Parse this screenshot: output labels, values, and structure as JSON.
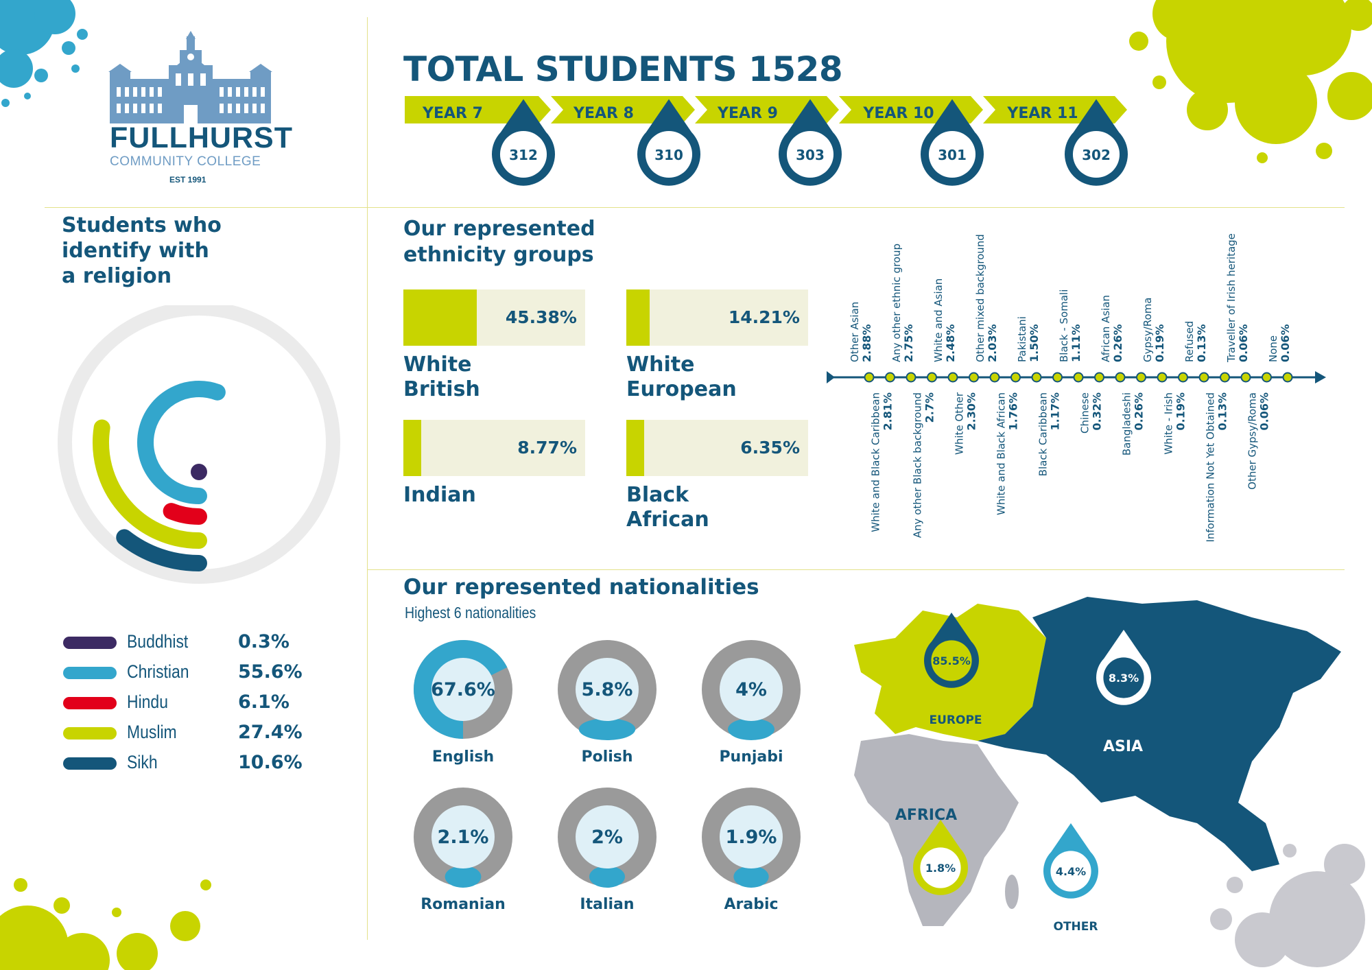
{
  "colors": {
    "navy": "#14567a",
    "lime": "#c8d400",
    "blue": "#33a6cc",
    "red": "#e2001a",
    "purple": "#3c2a63",
    "grey": "#9a9a9a",
    "lightgrey": "#ebebeb",
    "cream": "#f1f1dd",
    "logo": "#6f9cc4"
  },
  "logo": {
    "name": "FULLHURST",
    "subtitle": "COMMUNITY COLLEGE",
    "est": "EST 1991"
  },
  "total": {
    "title": "TOTAL STUDENTS 1528",
    "years": [
      {
        "label": "YEAR 7",
        "value": "312"
      },
      {
        "label": "YEAR 8",
        "value": "310"
      },
      {
        "label": "YEAR 9",
        "value": "303"
      },
      {
        "label": "YEAR 10",
        "value": "301"
      },
      {
        "label": "YEAR 11",
        "value": "302"
      }
    ]
  },
  "religion": {
    "title": [
      "Students who",
      "identify with",
      "a religion"
    ],
    "items": [
      {
        "label": "Buddhist",
        "value": "0.3%",
        "color": "#3c2a63"
      },
      {
        "label": "Christian",
        "value": "55.6%",
        "color": "#33a6cc"
      },
      {
        "label": "Hindu",
        "value": "6.1%",
        "color": "#e2001a"
      },
      {
        "label": "Muslim",
        "value": "27.4%",
        "color": "#c8d400"
      },
      {
        "label": "Sikh",
        "value": "10.6%",
        "color": "#14567a"
      }
    ]
  },
  "ethnicity": {
    "title": [
      "Our represented",
      "ethnicity groups"
    ],
    "top": [
      {
        "value": "45.38%",
        "label": [
          "White",
          "British"
        ]
      },
      {
        "value": "14.21%",
        "label": [
          "White",
          "European"
        ]
      },
      {
        "value": "8.77%",
        "label": [
          "Indian"
        ]
      },
      {
        "value": "6.35%",
        "label": [
          "Black",
          "African"
        ]
      }
    ],
    "timeline_above": [
      {
        "name": "Other Asian",
        "value": "2.88%"
      },
      {
        "name": "Any other ethnic group",
        "value": "2.75%"
      },
      {
        "name": "White and Asian",
        "value": "2.48%"
      },
      {
        "name": "Other mixed background",
        "value": "2.03%"
      },
      {
        "name": "Pakistani",
        "value": "1.50%"
      },
      {
        "name": "Black - Somali",
        "value": "1.11%"
      },
      {
        "name": "African Asian",
        "value": "0.26%"
      },
      {
        "name": "Gypsy/Roma",
        "value": "0.19%"
      },
      {
        "name": "Refused",
        "value": "0.13%"
      },
      {
        "name": "Traveller of Irish heritage",
        "value": "0.06%"
      },
      {
        "name": "None",
        "value": "0.06%"
      }
    ],
    "timeline_below": [
      {
        "name": "White and Black Caribbean",
        "value": "2.81%"
      },
      {
        "name": "Any other Black background",
        "value": "2.7%"
      },
      {
        "name": "White Other",
        "value": "2.30%"
      },
      {
        "name": "White and Black African",
        "value": "1.76%"
      },
      {
        "name": "Black Caribbean",
        "value": "1.17%"
      },
      {
        "name": "Chinese",
        "value": "0.32%"
      },
      {
        "name": "Bangladeshi",
        "value": "0.26%"
      },
      {
        "name": "White - Irish",
        "value": "0.19%"
      },
      {
        "name": "Information Not Yet Obtained",
        "value": "0.13%"
      },
      {
        "name": "Other Gypsy/Roma",
        "value": "0.06%"
      }
    ]
  },
  "nationalities": {
    "title": "Our represented nationalities",
    "subtitle": "Highest 6 nationalities",
    "items": [
      {
        "value": "67.6%",
        "label": "English"
      },
      {
        "value": "5.8%",
        "label": "Polish"
      },
      {
        "value": "4%",
        "label": "Punjabi"
      },
      {
        "value": "2.1%",
        "label": "Romanian"
      },
      {
        "value": "2%",
        "label": "Italian"
      },
      {
        "value": "1.9%",
        "label": "Arabic"
      }
    ]
  },
  "map": {
    "europe": {
      "label": "EUROPE",
      "value": "85.5%"
    },
    "asia": {
      "label": "ASIA",
      "value": "8.3%"
    },
    "africa": {
      "label": "AFRICA",
      "value": "1.8%"
    },
    "other": {
      "label": "OTHER",
      "value": "4.4%"
    }
  },
  "chart_data": [
    {
      "type": "bar",
      "title": "TOTAL STUDENTS 1528",
      "categories": [
        "YEAR 7",
        "YEAR 8",
        "YEAR 9",
        "YEAR 10",
        "YEAR 11"
      ],
      "values": [
        312,
        310,
        303,
        301,
        302
      ]
    },
    {
      "type": "bar",
      "title": "Students who identify with a religion",
      "categories": [
        "Buddhist",
        "Christian",
        "Hindu",
        "Muslim",
        "Sikh"
      ],
      "values": [
        0.3,
        55.6,
        6.1,
        27.4,
        10.6
      ]
    },
    {
      "type": "bar",
      "title": "Our represented ethnicity groups",
      "categories": [
        "White British",
        "White European",
        "Indian",
        "Black African"
      ],
      "values": [
        45.38,
        14.21,
        8.77,
        6.35
      ]
    },
    {
      "type": "scatter",
      "categories": [
        "Other Asian",
        "White and Black Caribbean",
        "Any other ethnic group",
        "Any other Black background",
        "White and Asian",
        "White Other",
        "Other mixed background",
        "White and Black African",
        "Pakistani",
        "Black Caribbean",
        "Black - Somali",
        "Chinese",
        "African Asian",
        "Bangladeshi",
        "Gypsy/Roma",
        "White - Irish",
        "Refused",
        "Information Not Yet Obtained",
        "Traveller of Irish heritage",
        "Other Gypsy/Roma",
        "None"
      ],
      "values": [
        2.88,
        2.81,
        2.75,
        2.7,
        2.48,
        2.3,
        2.03,
        1.76,
        1.5,
        1.17,
        1.11,
        0.32,
        0.26,
        0.26,
        0.19,
        0.19,
        0.13,
        0.13,
        0.06,
        0.06,
        0.06
      ]
    },
    {
      "type": "pie",
      "title": "Our represented nationalities",
      "subtitle": "Highest 6 nationalities",
      "categories": [
        "English",
        "Polish",
        "Punjabi",
        "Romanian",
        "Italian",
        "Arabic"
      ],
      "values": [
        67.6,
        5.8,
        4,
        2.1,
        2,
        1.9
      ]
    },
    {
      "type": "bar",
      "categories": [
        "EUROPE",
        "ASIA",
        "AFRICA",
        "OTHER"
      ],
      "values": [
        85.5,
        8.3,
        1.8,
        4.4
      ]
    }
  ]
}
